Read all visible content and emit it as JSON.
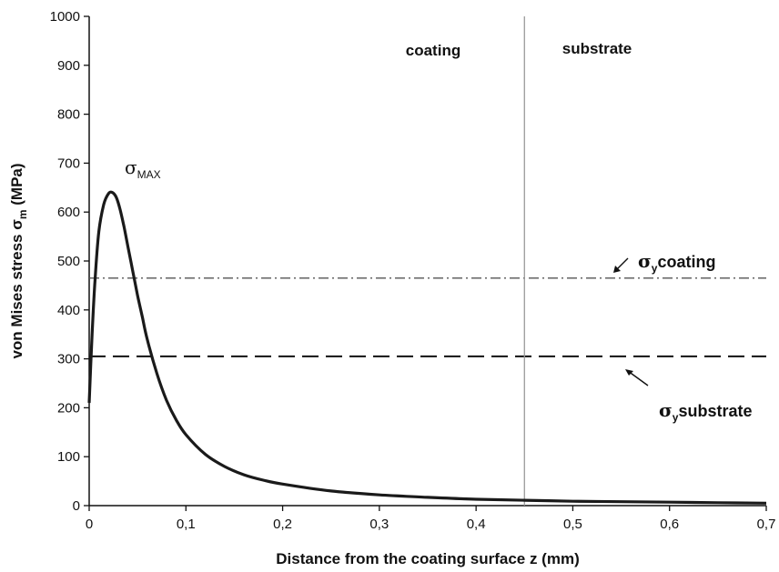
{
  "chart_data": {
    "type": "line",
    "xlabel": "Distance from the coating surface z (mm)",
    "ylabel_parts": {
      "main": "von Mises stress σ",
      "sub": "m",
      "unit": "(MPa)"
    },
    "xlim": [
      0,
      0.7
    ],
    "ylim": [
      0,
      1000
    ],
    "x_ticks": [
      "0",
      "0,1",
      "0,2",
      "0,3",
      "0,4",
      "0,5",
      "0,6",
      "0,7"
    ],
    "x_tick_values": [
      0,
      0.1,
      0.2,
      0.3,
      0.4,
      0.5,
      0.6,
      0.7
    ],
    "y_ticks": [
      "0",
      "100",
      "200",
      "300",
      "400",
      "500",
      "600",
      "700",
      "800",
      "900",
      "1000"
    ],
    "y_tick_values": [
      0,
      100,
      200,
      300,
      400,
      500,
      600,
      700,
      800,
      900,
      1000
    ],
    "series": [
      {
        "style": "solid-thick",
        "x": [
          0,
          0.003,
          0.006,
          0.01,
          0.015,
          0.02,
          0.024,
          0.028,
          0.032,
          0.036,
          0.04,
          0.045,
          0.05,
          0.055,
          0.06,
          0.07,
          0.08,
          0.09,
          0.1,
          0.12,
          0.14,
          0.16,
          0.18,
          0.2,
          0.25,
          0.3,
          0.35,
          0.4,
          0.45,
          0.5,
          0.55,
          0.6,
          0.65,
          0.7
        ],
        "y": [
          210,
          350,
          460,
          560,
          615,
          638,
          640,
          630,
          605,
          570,
          530,
          480,
          430,
          385,
          340,
          270,
          215,
          175,
          145,
          105,
          80,
          63,
          52,
          44,
          30,
          22,
          17,
          13,
          11,
          9,
          8,
          7,
          6,
          5
        ]
      }
    ],
    "reference_lines": [
      {
        "name": "σy coating",
        "y": 465,
        "style": "dash-dot"
      },
      {
        "name": "σy substrate",
        "y": 305,
        "style": "long-dash"
      },
      {
        "name": "coating/substrate interface",
        "x": 0.45,
        "style": "vertical-gray"
      }
    ],
    "annotations": {
      "region_coating": "coating",
      "region_substrate": "substrate",
      "sigma_symbol": "σ",
      "sigma_max_sub": "MAX",
      "coating_yield_sub": "y",
      "coating_yield_text": "coating",
      "substrate_yield_sub": "y",
      "substrate_yield_text": "substrate"
    },
    "grid": false,
    "colors": {
      "curve": "#1a1a1a",
      "coating_line": "#555555",
      "substrate_line": "#111111",
      "interface": "#999999"
    }
  }
}
